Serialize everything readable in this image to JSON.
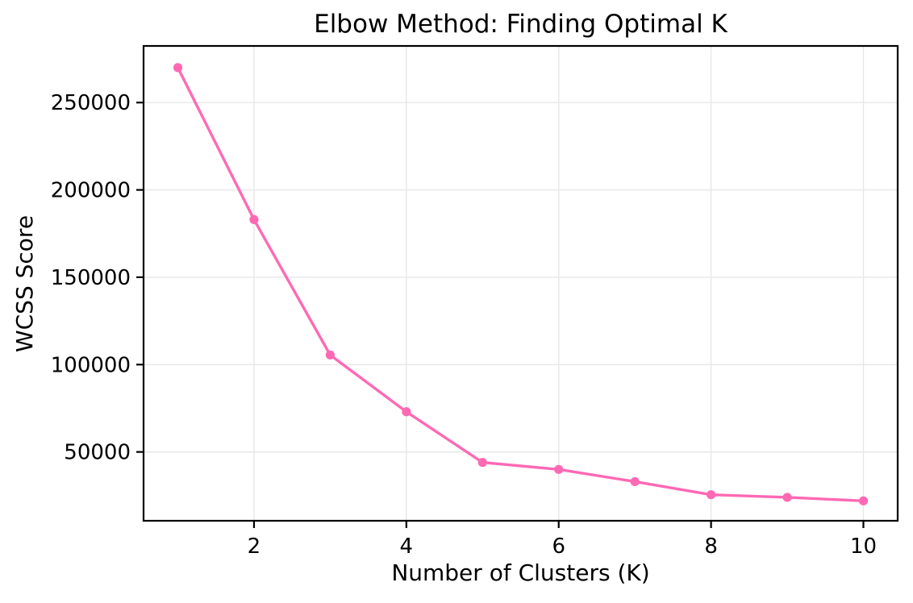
{
  "chart_data": {
    "type": "line",
    "title": "Elbow Method: Finding Optimal K",
    "xlabel": "Number of Clusters (K)",
    "ylabel": "WCSS Score",
    "x": [
      1,
      2,
      3,
      4,
      5,
      6,
      7,
      8,
      9,
      10
    ],
    "y": [
      270000,
      183000,
      105500,
      73000,
      44000,
      40000,
      33000,
      25500,
      24000,
      22000
    ],
    "xticks": [
      2,
      4,
      6,
      8,
      10
    ],
    "xtick_labels": [
      "2",
      "4",
      "6",
      "8",
      "10"
    ],
    "yticks": [
      50000,
      100000,
      150000,
      200000,
      250000
    ],
    "ytick_labels": [
      "50000",
      "100000",
      "150000",
      "200000",
      "250000"
    ],
    "xlim": [
      0.55,
      10.45
    ],
    "ylim": [
      10600,
      282400
    ],
    "grid": true,
    "legend": false,
    "line_color": "#FF69B4",
    "marker_color": "#FF69B4",
    "grid_color": "#e7e7e7",
    "spine_color": "#000000",
    "background_color": "#ffffff",
    "text_color": "#000000"
  }
}
